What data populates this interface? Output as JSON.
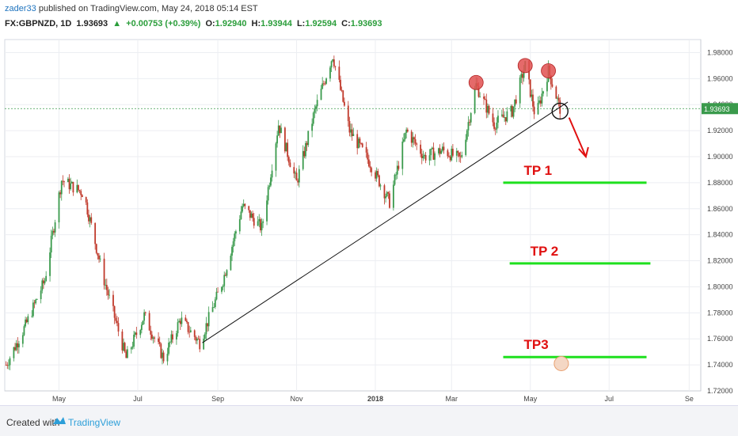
{
  "header": {
    "user": "zader33",
    "published": "published on TradingView.com, May 24, 2018 05:14 EST",
    "symbol": "FX:GBPNZD, 1D",
    "last": "1.93693",
    "change": "+0.00753 (+0.39%)",
    "o_label": "O:",
    "o": "1.92940",
    "h_label": "H:",
    "h": "1.93944",
    "l_label": "L:",
    "l": "1.92594",
    "c_label": "C:",
    "c": "1.93693"
  },
  "footer": {
    "created_with": "Created with",
    "brand": "TradingView"
  },
  "colors": {
    "up": "#3a9a4c",
    "down": "#c0392b",
    "tp": "#1ee01e",
    "label": "#e01010",
    "circle": "#e05050"
  },
  "chart_data": {
    "type": "candlestick",
    "x_ticks": [
      "May",
      "Jul",
      "Sep",
      "Nov",
      "2018",
      "Mar",
      "May",
      "Jul",
      "Se"
    ],
    "y_ticks": [
      "1.98000",
      "1.96000",
      "1.94000",
      "1.92000",
      "1.90000",
      "1.88000",
      "1.86000",
      "1.84000",
      "1.82000",
      "1.80000",
      "1.78000",
      "1.76000",
      "1.74000",
      "1.72000"
    ],
    "ylim": [
      1.72,
      1.99
    ],
    "last_price": 1.93693,
    "last_price_label": "1.93693",
    "close_path": [
      {
        "date": "2017-03-21",
        "close": 1.74
      },
      {
        "date": "2017-04-05",
        "close": 1.77
      },
      {
        "date": "2017-04-20",
        "close": 1.805
      },
      {
        "date": "2017-05-03",
        "close": 1.882
      },
      {
        "date": "2017-05-20",
        "close": 1.872
      },
      {
        "date": "2017-06-05",
        "close": 1.805
      },
      {
        "date": "2017-06-22",
        "close": 1.745
      },
      {
        "date": "2017-07-06",
        "close": 1.778
      },
      {
        "date": "2017-07-21",
        "close": 1.745
      },
      {
        "date": "2017-08-03",
        "close": 1.775
      },
      {
        "date": "2017-08-18",
        "close": 1.757
      },
      {
        "date": "2017-09-05",
        "close": 1.805
      },
      {
        "date": "2017-09-20",
        "close": 1.862
      },
      {
        "date": "2017-10-05",
        "close": 1.845
      },
      {
        "date": "2017-10-18",
        "close": 1.925
      },
      {
        "date": "2017-11-01",
        "close": 1.88
      },
      {
        "date": "2017-11-15",
        "close": 1.935
      },
      {
        "date": "2017-11-29",
        "close": 1.978
      },
      {
        "date": "2017-12-12",
        "close": 1.92
      },
      {
        "date": "2017-12-28",
        "close": 1.895
      },
      {
        "date": "2018-01-12",
        "close": 1.865
      },
      {
        "date": "2018-01-25",
        "close": 1.92
      },
      {
        "date": "2018-02-08",
        "close": 1.9
      },
      {
        "date": "2018-02-22",
        "close": 1.905
      },
      {
        "date": "2018-03-08",
        "close": 1.898
      },
      {
        "date": "2018-03-20",
        "close": 1.955
      },
      {
        "date": "2018-04-03",
        "close": 1.925
      },
      {
        "date": "2018-04-17",
        "close": 1.935
      },
      {
        "date": "2018-04-27",
        "close": 1.97
      },
      {
        "date": "2018-05-05",
        "close": 1.93
      },
      {
        "date": "2018-05-15",
        "close": 1.966
      },
      {
        "date": "2018-05-24",
        "close": 1.93693
      }
    ],
    "trendline": [
      {
        "date": "2017-08-20",
        "price": 1.757
      },
      {
        "date": "2018-05-30",
        "price": 1.942
      }
    ],
    "targets": [
      {
        "label": "TP 1",
        "price": 1.88
      },
      {
        "label": "TP 2",
        "price": 1.818
      },
      {
        "label": "TP3",
        "price": 1.746
      }
    ],
    "grid": true
  }
}
